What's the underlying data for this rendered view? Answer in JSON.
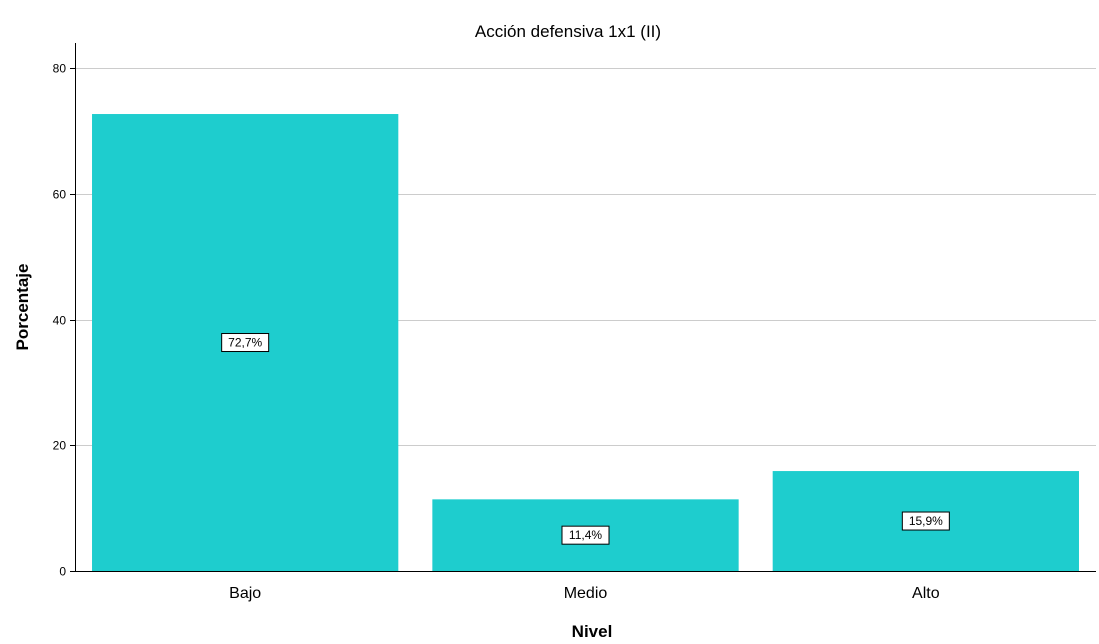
{
  "chart_data": {
    "type": "bar",
    "title": "Acción defensiva 1x1 (II)",
    "xlabel": "Nivel",
    "ylabel": "Porcentaje",
    "categories": [
      "Bajo",
      "Medio",
      "Alto"
    ],
    "values": [
      72.7,
      11.4,
      15.9
    ],
    "data_labels": [
      "72,7%",
      "11,4%",
      "15,9%"
    ],
    "ylim": [
      0,
      84
    ],
    "yticks": [
      0,
      20,
      40,
      60,
      80
    ],
    "grid": true,
    "bar_color": "#1ecdce",
    "grid_color": "#cccccc",
    "axis_color": "#000000"
  }
}
